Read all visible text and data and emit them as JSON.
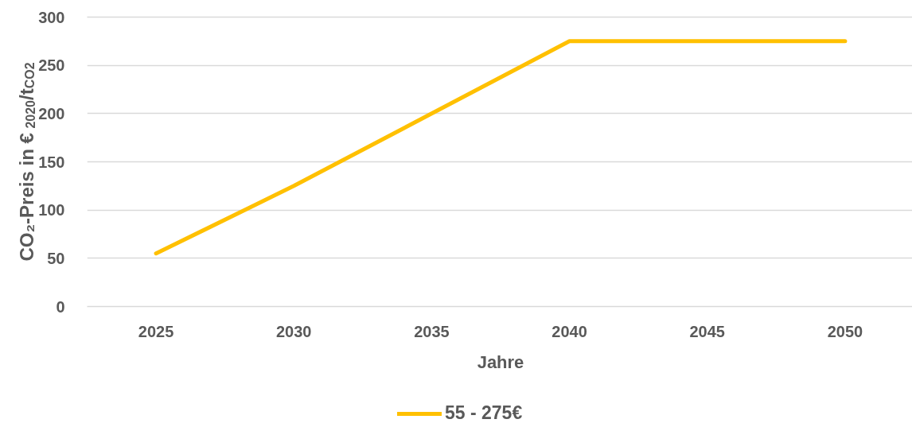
{
  "chart_data": {
    "type": "line",
    "xlabel": "Jahre",
    "ylabel": "CO₂-Preis in € $_{2020}$/t$_{CO2}$",
    "categories": [
      "2025",
      "2030",
      "2035",
      "2040",
      "2045",
      "2050"
    ],
    "series": [
      {
        "name": "55 - 275€",
        "color": "#ffc000",
        "values": [
          55,
          125,
          200,
          275,
          275,
          275
        ]
      }
    ],
    "ylim": [
      0,
      300
    ],
    "yticks": [
      0,
      50,
      100,
      150,
      200,
      250,
      300
    ],
    "grid": "y",
    "legend": "bottom",
    "line_style": "solid"
  }
}
